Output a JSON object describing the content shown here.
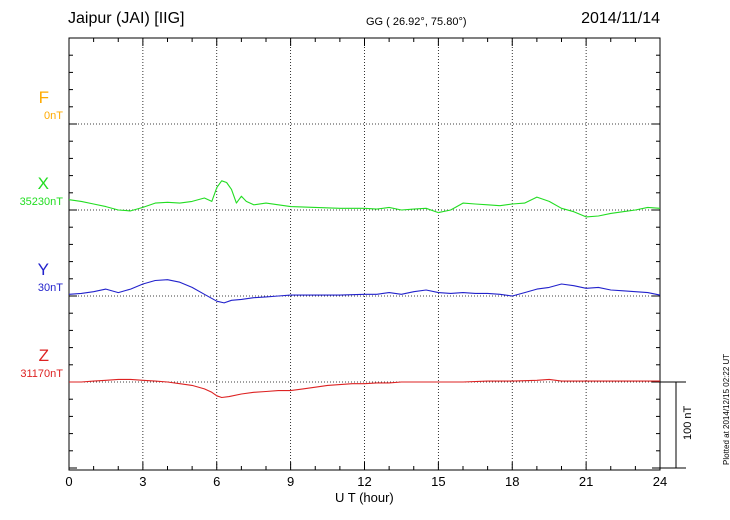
{
  "header": {
    "station": "Jaipur (JAI)  [IIG]",
    "coords": "GG ( 26.92°,  75.80°)",
    "date": "2014/11/14"
  },
  "footer": {
    "plotted": "Plotted at 2014/12/15 02:22 UT"
  },
  "chart_data": {
    "type": "line",
    "xlabel": "U T (hour)",
    "xlim": [
      0,
      24
    ],
    "xticks": [
      "0",
      "3",
      "6",
      "9",
      "12",
      "15",
      "18",
      "21",
      "24"
    ],
    "grid": true,
    "scale_bar": {
      "label": "100 nT",
      "nT": 100
    },
    "series": [
      {
        "name": "F",
        "baseline": "0nT",
        "color": "#ffaa00",
        "offset_nT": 300,
        "x": [],
        "values": []
      },
      {
        "name": "X",
        "baseline": "35230nT",
        "color": "#22dd22",
        "offset_nT": 200,
        "x": [
          0,
          0.5,
          1,
          1.5,
          2,
          2.5,
          3,
          3.5,
          4,
          4.5,
          5,
          5.5,
          5.8,
          6.0,
          6.2,
          6.4,
          6.6,
          6.8,
          7.0,
          7.2,
          7.5,
          8,
          8.5,
          9,
          10,
          11,
          12,
          12.5,
          13,
          13.5,
          14,
          14.5,
          15,
          15.5,
          16,
          16.5,
          17,
          17.5,
          18,
          18.5,
          19,
          19.5,
          20,
          20.5,
          21,
          21.5,
          22,
          22.5,
          23,
          23.5,
          24
        ],
        "values": [
          12,
          10,
          7,
          4,
          0,
          -1,
          3,
          8,
          9,
          8,
          10,
          14,
          10,
          26,
          34,
          32,
          24,
          8,
          16,
          10,
          6,
          8,
          6,
          4,
          3,
          2,
          2,
          1,
          3,
          0,
          1,
          2,
          -3,
          0,
          8,
          7,
          6,
          5,
          7,
          8,
          15,
          10,
          2,
          -2,
          -8,
          -7,
          -4,
          -2,
          0,
          3,
          2
        ]
      },
      {
        "name": "Y",
        "baseline": "30nT",
        "color": "#2222cc",
        "offset_nT": 100,
        "x": [
          0,
          0.5,
          1,
          1.5,
          2,
          2.5,
          3,
          3.5,
          4,
          4.5,
          5,
          5.5,
          6,
          6.3,
          6.6,
          7,
          7.5,
          8,
          8.5,
          9,
          10,
          11,
          12,
          12.5,
          13,
          13.5,
          14,
          14.5,
          15,
          15.5,
          16,
          16.5,
          17,
          17.5,
          18,
          18.5,
          19,
          19.5,
          20,
          20.5,
          21,
          21.5,
          22,
          22.5,
          23,
          23.5,
          24
        ],
        "values": [
          2,
          3,
          5,
          8,
          4,
          8,
          14,
          18,
          19,
          16,
          10,
          2,
          -6,
          -8,
          -5,
          -4,
          -2,
          -1,
          0,
          1,
          1,
          1,
          2,
          2,
          4,
          2,
          5,
          7,
          4,
          3,
          4,
          3,
          3,
          2,
          0,
          4,
          8,
          10,
          14,
          12,
          9,
          10,
          7,
          6,
          5,
          4,
          1
        ]
      },
      {
        "name": "Z",
        "baseline": "31170nT",
        "color": "#dd2222",
        "offset_nT": 0,
        "x": [
          0,
          0.5,
          1,
          1.5,
          2,
          2.5,
          3,
          3.5,
          4,
          4.5,
          5,
          5.5,
          5.8,
          6,
          6.2,
          6.5,
          7,
          7.5,
          8,
          8.5,
          9,
          9.5,
          10,
          10.5,
          11,
          11.5,
          12,
          12.5,
          13,
          13.5,
          14,
          15,
          16,
          17,
          18,
          19,
          19.5,
          20,
          21,
          22,
          23,
          24
        ],
        "values": [
          0,
          0,
          1,
          2,
          3,
          3,
          2,
          1,
          0,
          -2,
          -4,
          -8,
          -12,
          -16,
          -18,
          -17,
          -14,
          -12,
          -11,
          -10,
          -10,
          -8,
          -6,
          -4,
          -3,
          -2,
          -2,
          -1,
          -1,
          0,
          0,
          0,
          0,
          1,
          1,
          2,
          3,
          1,
          1,
          1,
          1,
          1
        ]
      }
    ]
  }
}
